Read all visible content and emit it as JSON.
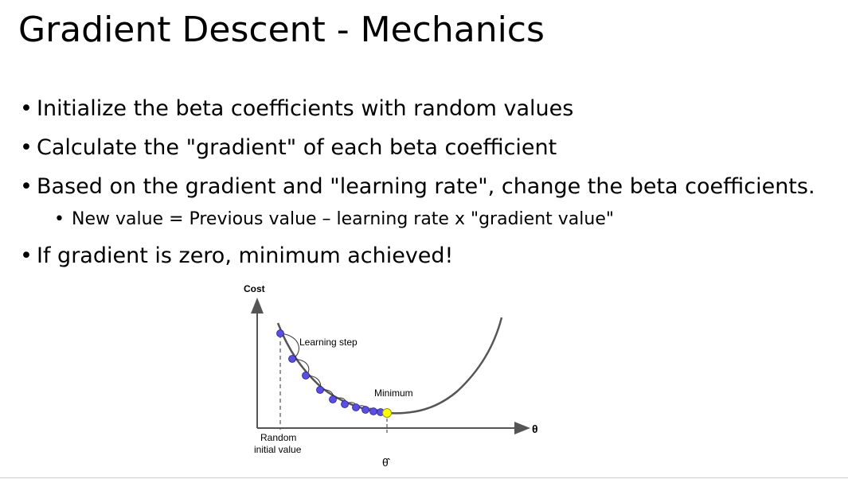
{
  "slide": {
    "title": "Gradient Descent - Mechanics",
    "bullets": [
      "Initialize the beta coefficients with random values",
      "Calculate the \"gradient\" of each beta coefficient",
      "Based on the gradient and \"learning rate\", change the beta coefficients.",
      "If gradient is zero, minimum achieved!"
    ],
    "sub_bullet": "New value = Previous value – learning rate x \"gradient value\"",
    "bullet_glyph": "•"
  },
  "figure": {
    "y_axis_label": "Cost",
    "x_axis_label": "θ",
    "learning_step_label": "Learning step",
    "minimum_label": "Minimum",
    "random_label_line1": "Random",
    "random_label_line2": "initial value",
    "theta_hat_label": "θ̂",
    "colors": {
      "curve": "#555555",
      "axis": "#555555",
      "step_point": "#5a4fe0",
      "minimum_point": "#ffff00",
      "text": "#000000"
    }
  }
}
